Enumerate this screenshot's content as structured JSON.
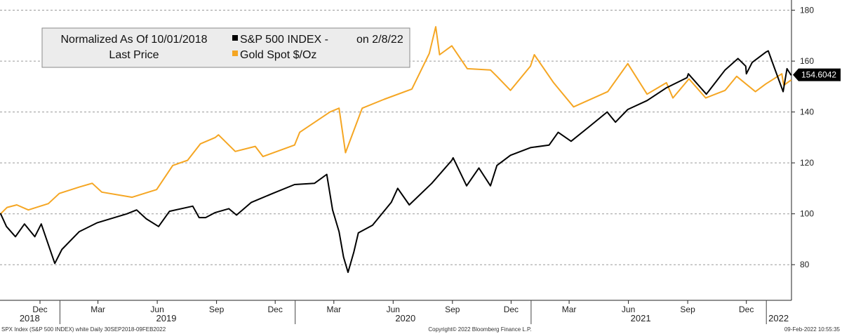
{
  "chart_data": {
    "type": "line",
    "legend": {
      "header_line1": "Normalized As Of 10/01/2018",
      "header_line2": "Last Price",
      "date_note": "on 2/8/22",
      "position": "top-left"
    },
    "y_axis": {
      "side": "right",
      "ylim": [
        66,
        184
      ],
      "ticks": [
        80,
        100,
        120,
        140,
        160,
        180
      ],
      "tick_labels": [
        "80",
        "100",
        "120",
        "140",
        "160",
        "180"
      ]
    },
    "x_axis": {
      "range": [
        "2018-09-30",
        "2022-02-09"
      ],
      "month_ticks": [
        {
          "date": "2018-12-01",
          "label": "Dec"
        },
        {
          "date": "2019-03-01",
          "label": "Mar"
        },
        {
          "date": "2019-06-01",
          "label": "Jun"
        },
        {
          "date": "2019-09-01",
          "label": "Sep"
        },
        {
          "date": "2019-12-01",
          "label": "Dec"
        },
        {
          "date": "2020-03-01",
          "label": "Mar"
        },
        {
          "date": "2020-06-01",
          "label": "Jun"
        },
        {
          "date": "2020-09-01",
          "label": "Sep"
        },
        {
          "date": "2020-12-01",
          "label": "Dec"
        },
        {
          "date": "2021-03-01",
          "label": "Mar"
        },
        {
          "date": "2021-06-01",
          "label": "Jun"
        },
        {
          "date": "2021-09-01",
          "label": "Sep"
        },
        {
          "date": "2021-12-01",
          "label": "Dec"
        }
      ],
      "year_labels": [
        {
          "date": "2018-11-15",
          "label": "2018"
        },
        {
          "date": "2019-06-15",
          "label": "2019"
        },
        {
          "date": "2020-06-20",
          "label": "2020"
        },
        {
          "date": "2021-06-20",
          "label": "2021"
        },
        {
          "date": "2022-01-20",
          "label": "2022"
        }
      ],
      "year_separators": [
        "2019-01-01",
        "2020-01-01",
        "2021-01-01",
        "2022-01-01"
      ]
    },
    "grid": "horizontal dashed",
    "last_price_label": "154.6042",
    "series": [
      {
        "name": "S&P 500 INDEX -",
        "color": "#000000",
        "points": [
          [
            "2018-10-01",
            100
          ],
          [
            "2018-10-10",
            95
          ],
          [
            "2018-10-24",
            91
          ],
          [
            "2018-11-07",
            96
          ],
          [
            "2018-11-23",
            91
          ],
          [
            "2018-12-03",
            96
          ],
          [
            "2018-12-24",
            80.5
          ],
          [
            "2019-01-04",
            86
          ],
          [
            "2019-01-31",
            93
          ],
          [
            "2019-02-28",
            96.5
          ],
          [
            "2019-04-15",
            100
          ],
          [
            "2019-04-30",
            101.5
          ],
          [
            "2019-05-15",
            98
          ],
          [
            "2019-06-03",
            95
          ],
          [
            "2019-06-20",
            101
          ],
          [
            "2019-07-26",
            103
          ],
          [
            "2019-08-05",
            98.5
          ],
          [
            "2019-08-15",
            98.5
          ],
          [
            "2019-08-30",
            100.5
          ],
          [
            "2019-09-20",
            102
          ],
          [
            "2019-10-02",
            99.5
          ],
          [
            "2019-10-25",
            104.5
          ],
          [
            "2019-11-27",
            108
          ],
          [
            "2019-12-31",
            111.5
          ],
          [
            "2020-01-31",
            112
          ],
          [
            "2020-02-19",
            115.5
          ],
          [
            "2020-02-28",
            101.5
          ],
          [
            "2020-03-09",
            93
          ],
          [
            "2020-03-16",
            83
          ],
          [
            "2020-03-23",
            77
          ],
          [
            "2020-04-01",
            85
          ],
          [
            "2020-04-08",
            92.5
          ],
          [
            "2020-04-30",
            95.5
          ],
          [
            "2020-05-29",
            104.5
          ],
          [
            "2020-06-08",
            110
          ],
          [
            "2020-06-26",
            103.5
          ],
          [
            "2020-07-31",
            112
          ],
          [
            "2020-08-31",
            121
          ],
          [
            "2020-09-02",
            122
          ],
          [
            "2020-09-23",
            111
          ],
          [
            "2020-10-12",
            118
          ],
          [
            "2020-10-30",
            111
          ],
          [
            "2020-11-09",
            119
          ],
          [
            "2020-11-30",
            123
          ],
          [
            "2020-12-31",
            126
          ],
          [
            "2021-01-29",
            127
          ],
          [
            "2021-02-12",
            132
          ],
          [
            "2021-03-04",
            128.5
          ],
          [
            "2021-03-31",
            134
          ],
          [
            "2021-04-29",
            140
          ],
          [
            "2021-05-12",
            136
          ],
          [
            "2021-05-31",
            141
          ],
          [
            "2021-06-30",
            144.5
          ],
          [
            "2021-07-30",
            149.5
          ],
          [
            "2021-08-31",
            153.5
          ],
          [
            "2021-09-02",
            155
          ],
          [
            "2021-09-30",
            147
          ],
          [
            "2021-10-29",
            156.5
          ],
          [
            "2021-11-18",
            161
          ],
          [
            "2021-11-30",
            158
          ],
          [
            "2021-12-01",
            155
          ],
          [
            "2021-12-10",
            159.5
          ],
          [
            "2021-12-31",
            163.5
          ],
          [
            "2022-01-04",
            164
          ],
          [
            "2022-01-14",
            157
          ],
          [
            "2022-01-27",
            148
          ],
          [
            "2022-02-02",
            157
          ],
          [
            "2022-02-08",
            154.6
          ]
        ]
      },
      {
        "name": "Gold Spot $/Oz",
        "color": "#f5a623",
        "points": [
          [
            "2018-10-01",
            100
          ],
          [
            "2018-10-11",
            102.5
          ],
          [
            "2018-10-26",
            103.5
          ],
          [
            "2018-11-13",
            101.5
          ],
          [
            "2018-12-14",
            104
          ],
          [
            "2018-12-31",
            108
          ],
          [
            "2019-01-31",
            110.5
          ],
          [
            "2019-02-20",
            112
          ],
          [
            "2019-03-07",
            108.5
          ],
          [
            "2019-04-23",
            106.5
          ],
          [
            "2019-05-31",
            109.5
          ],
          [
            "2019-06-25",
            119
          ],
          [
            "2019-07-18",
            121
          ],
          [
            "2019-08-07",
            127.5
          ],
          [
            "2019-08-30",
            130
          ],
          [
            "2019-09-04",
            131
          ],
          [
            "2019-09-30",
            124.5
          ],
          [
            "2019-10-31",
            126.5
          ],
          [
            "2019-11-12",
            122.5
          ],
          [
            "2019-12-31",
            127
          ],
          [
            "2020-01-08",
            132
          ],
          [
            "2020-02-24",
            140
          ],
          [
            "2020-03-09",
            141.5
          ],
          [
            "2020-03-19",
            124
          ],
          [
            "2020-04-14",
            141.5
          ],
          [
            "2020-05-18",
            145
          ],
          [
            "2020-06-30",
            149
          ],
          [
            "2020-07-27",
            163
          ],
          [
            "2020-08-06",
            173.5
          ],
          [
            "2020-08-12",
            162.5
          ],
          [
            "2020-08-31",
            166
          ],
          [
            "2020-09-24",
            157
          ],
          [
            "2020-10-30",
            156.5
          ],
          [
            "2020-11-09",
            154
          ],
          [
            "2020-11-30",
            148.5
          ],
          [
            "2020-12-31",
            158
          ],
          [
            "2021-01-06",
            162.5
          ],
          [
            "2021-02-05",
            151.5
          ],
          [
            "2021-03-08",
            142
          ],
          [
            "2021-04-30",
            148
          ],
          [
            "2021-05-31",
            159
          ],
          [
            "2021-06-30",
            147
          ],
          [
            "2021-07-30",
            151.5
          ],
          [
            "2021-08-09",
            145.5
          ],
          [
            "2021-09-03",
            153
          ],
          [
            "2021-09-29",
            145.5
          ],
          [
            "2021-10-29",
            148.5
          ],
          [
            "2021-11-16",
            154
          ],
          [
            "2021-12-15",
            148
          ],
          [
            "2021-12-31",
            151
          ],
          [
            "2022-01-25",
            155
          ],
          [
            "2022-01-28",
            150.5
          ],
          [
            "2022-02-08",
            152.5
          ]
        ]
      }
    ]
  },
  "footer": {
    "left": "SPX Index (S&P 500 INDEX) white  Daily 30SEP2018-09FEB2022",
    "center": "Copyright© 2022 Bloomberg Finance L.P.",
    "right": "09-Feb-2022 10:55:35"
  }
}
